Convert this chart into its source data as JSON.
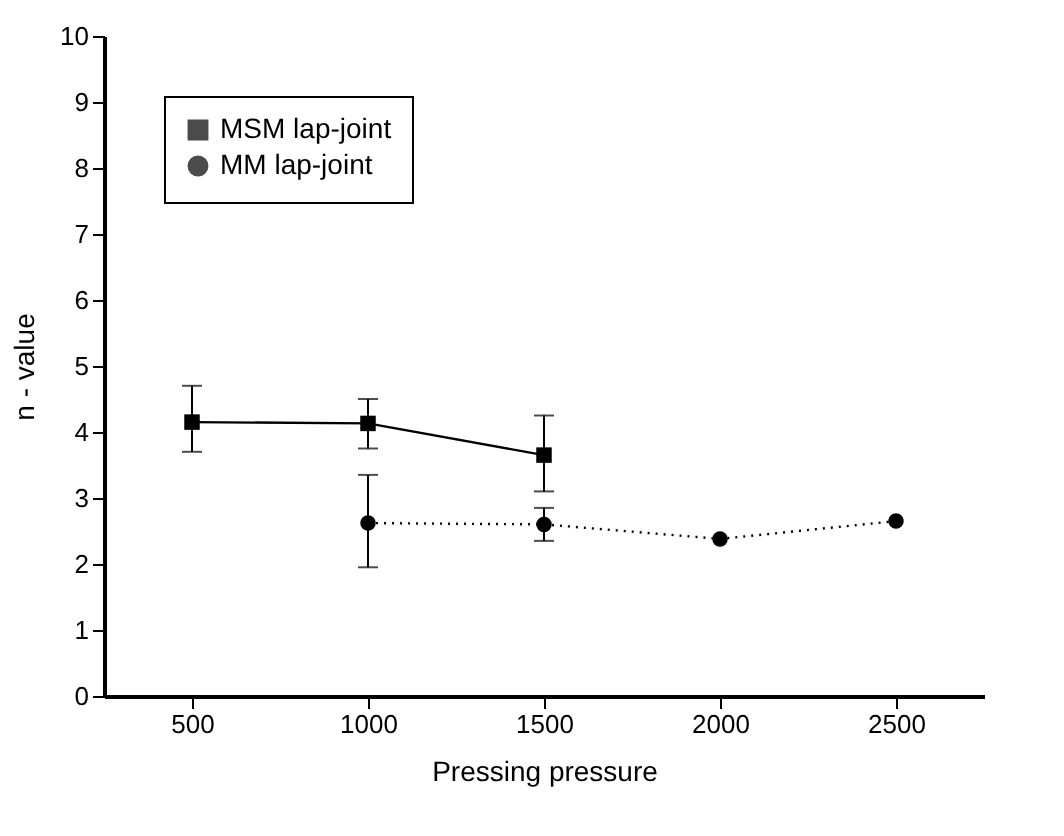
{
  "chart_data": {
    "type": "line",
    "xlabel": "Pressing pressure",
    "ylabel": "n - value",
    "xlim": [
      250,
      2750
    ],
    "ylim": [
      0,
      10
    ],
    "xticks": [
      500,
      1000,
      1500,
      2000,
      2500
    ],
    "yticks": [
      0,
      1,
      2,
      3,
      4,
      5,
      6,
      7,
      8,
      9,
      10
    ],
    "grid": false,
    "legend": "top left",
    "series": [
      {
        "name": "MSM lap-joint",
        "color": "#000000",
        "marker": "square",
        "line_style": "solid",
        "x": [
          500,
          1000,
          1500
        ],
        "values": [
          4.15,
          4.13,
          3.65
        ],
        "errors": [
          [
            3.7,
            4.7
          ],
          [
            3.75,
            4.5
          ],
          [
            3.1,
            4.25
          ]
        ]
      },
      {
        "name": "MM lap-joint",
        "color": "#000000",
        "marker": "circle",
        "line_style": "dotted",
        "x": [
          1000,
          1500,
          2000,
          2500
        ],
        "values": [
          2.62,
          2.6,
          2.38,
          2.65
        ],
        "errors": [
          [
            1.95,
            3.35
          ],
          [
            2.35,
            2.85
          ],
          null,
          null
        ]
      }
    ]
  }
}
